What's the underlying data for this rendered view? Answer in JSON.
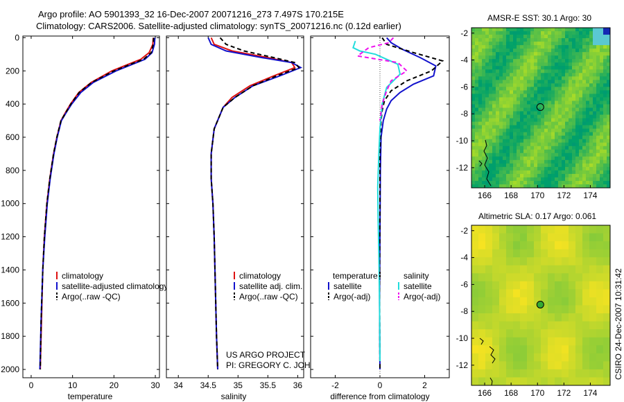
{
  "header": {
    "line1": "Argo profile: AO 5901393_32 16-Dec-2007 20071216_273 7.497S 170.215E",
    "line2": "Climatology: CARS2006. Satellite-adjusted climatology: synTS_20071216.nc (0.12d earlier)"
  },
  "side_label": "CSIRO 24-Dec-2007 10:31:42",
  "project": {
    "line1": "US ARGO PROJECT",
    "line2": "PI: GREGORY C. JOHNSON"
  },
  "colors": {
    "climatology": "#dd1111",
    "satellite": "#1111cc",
    "argo": "#000000",
    "salinity_satellite": "#22dddd",
    "salinity_argo": "#ee11ee"
  },
  "chart_data": [
    {
      "type": "line",
      "name": "temperature-panel",
      "xlabel": "temperature",
      "ylabel": "",
      "xlim": [
        -2,
        31
      ],
      "ylim": [
        2050,
        -10
      ],
      "x_ticks": [
        0,
        10,
        20,
        30
      ],
      "x_tick_labels": [
        "0",
        "10",
        "20",
        "30"
      ],
      "y_ticks": [
        0,
        200,
        400,
        600,
        800,
        1000,
        1200,
        1400,
        1600,
        1800,
        2000
      ],
      "y_tick_labels": [
        "0",
        "200",
        "400",
        "600",
        "800",
        "1000",
        "1200",
        "1400",
        "1600",
        "1800",
        "2000"
      ],
      "legend": [
        "climatology",
        "satellite-adjusted climatology",
        "Argo(..raw -QC)"
      ],
      "series": [
        {
          "name": "climatology",
          "style": "solid",
          "x": [
            29.5,
            29.4,
            28.5,
            26.5,
            23.5,
            19.5,
            14.5,
            11.5,
            9.5,
            8.3,
            7.2,
            6.2,
            5.4,
            4.5,
            3.8,
            3.2,
            2.8,
            2.5,
            2.2
          ],
          "y": [
            0,
            40,
            90,
            130,
            160,
            200,
            270,
            330,
            400,
            450,
            500,
            600,
            700,
            850,
            1000,
            1200,
            1400,
            1700,
            2000
          ]
        },
        {
          "name": "satellite",
          "style": "solid",
          "x": [
            29.9,
            29.8,
            29.2,
            27.5,
            24.5,
            20.5,
            15.0,
            12.0,
            9.8,
            8.5,
            7.3,
            6.3,
            5.5,
            4.6,
            3.9,
            3.3,
            2.8,
            2.4,
            2.1
          ],
          "y": [
            0,
            40,
            90,
            130,
            160,
            200,
            270,
            330,
            400,
            450,
            500,
            600,
            700,
            850,
            1000,
            1200,
            1400,
            1700,
            2000
          ]
        },
        {
          "name": "argo",
          "style": "dashed",
          "x": [
            29.6,
            29.5,
            29.0,
            27.2,
            24.0,
            20.0,
            14.6,
            11.6,
            9.6,
            8.4,
            7.2,
            6.2,
            5.4,
            4.5,
            3.8,
            3.2,
            2.8,
            2.4,
            2.2
          ],
          "y": [
            0,
            40,
            90,
            130,
            160,
            200,
            270,
            330,
            400,
            450,
            500,
            600,
            700,
            850,
            1000,
            1200,
            1400,
            1700,
            2000
          ]
        }
      ]
    },
    {
      "type": "line",
      "name": "salinity-panel",
      "xlabel": "salinity",
      "xlim": [
        33.8,
        36.1
      ],
      "ylim": [
        2050,
        -10
      ],
      "x_ticks": [
        34,
        34.5,
        35,
        35.5,
        36
      ],
      "x_tick_labels": [
        "34",
        "34.5",
        "35",
        "35.5",
        "36"
      ],
      "legend": [
        "climatology",
        "satellite adj. clim.",
        "Argo(..raw -QC)"
      ],
      "series": [
        {
          "name": "climatology",
          "style": "solid",
          "x": [
            34.55,
            34.6,
            34.9,
            35.5,
            35.9,
            35.95,
            35.6,
            35.2,
            34.9,
            34.75,
            34.6,
            34.55,
            34.55,
            34.58,
            34.6,
            34.62,
            34.64,
            34.66
          ],
          "y": [
            0,
            40,
            80,
            120,
            150,
            180,
            230,
            290,
            360,
            420,
            550,
            700,
            850,
            1000,
            1200,
            1500,
            1800,
            2000
          ]
        },
        {
          "name": "satellite",
          "style": "solid",
          "x": [
            34.5,
            34.55,
            34.8,
            35.4,
            35.9,
            36.05,
            35.7,
            35.25,
            34.95,
            34.75,
            34.6,
            34.55,
            34.55,
            34.58,
            34.6,
            34.62,
            34.64,
            34.66
          ],
          "y": [
            0,
            40,
            80,
            120,
            150,
            180,
            230,
            290,
            360,
            420,
            550,
            700,
            850,
            1000,
            1200,
            1500,
            1800,
            2000
          ]
        },
        {
          "name": "argo",
          "style": "dashed",
          "x": [
            34.7,
            34.8,
            35.1,
            35.6,
            35.95,
            36.02,
            35.65,
            35.25,
            34.95,
            34.75,
            34.6,
            34.55,
            34.55,
            34.58,
            34.6,
            34.62,
            34.64,
            34.66
          ],
          "y": [
            0,
            40,
            80,
            120,
            150,
            180,
            230,
            290,
            360,
            420,
            550,
            700,
            850,
            1000,
            1200,
            1500,
            1800,
            2000
          ]
        }
      ]
    },
    {
      "type": "line",
      "name": "difference-panel",
      "xlabel": "difference from climatology",
      "xlim": [
        -3.1,
        3.1
      ],
      "ylim": [
        2050,
        -10
      ],
      "x_ticks": [
        -2,
        0,
        2
      ],
      "x_tick_labels": [
        "-2",
        "0",
        "2"
      ],
      "legend_headers": [
        "temperature",
        "salinity"
      ],
      "legend_left": [
        "satellite",
        "Argo(-adj)"
      ],
      "legend_right": [
        "satellite",
        "Argo(-adj)"
      ],
      "series": [
        {
          "name": "temperature-satellite",
          "style": "solid",
          "group": "temperature",
          "x": [
            0.3,
            0.5,
            1.0,
            1.8,
            2.5,
            2.4,
            1.5,
            0.9,
            0.5,
            0.3,
            0.15,
            0.05,
            0.02,
            0.0,
            -0.02,
            0.0
          ],
          "y": [
            0,
            30,
            70,
            120,
            170,
            230,
            280,
            330,
            380,
            430,
            500,
            600,
            800,
            1200,
            1600,
            2000
          ]
        },
        {
          "name": "temperature-argo",
          "style": "dashed",
          "group": "temperature",
          "x": [
            0.1,
            0.3,
            1.5,
            2.8,
            2.3,
            1.2,
            0.5,
            0.2,
            0.1,
            0.05,
            0.0,
            0.0,
            -0.02,
            0.0
          ],
          "y": [
            0,
            40,
            90,
            140,
            200,
            260,
            320,
            380,
            440,
            500,
            700,
            1000,
            1500,
            2000
          ]
        },
        {
          "name": "salinity-satellite",
          "style": "solid",
          "group": "salinity",
          "x": [
            -1.1,
            -1.2,
            -0.9,
            -0.2,
            0.8,
            0.9,
            0.3,
            0.1,
            0.0,
            -0.05,
            -0.1,
            -0.08,
            -0.05,
            -0.02,
            0.0
          ],
          "y": [
            20,
            60,
            80,
            100,
            160,
            220,
            300,
            400,
            550,
            700,
            900,
            1100,
            1300,
            1600,
            1950
          ]
        },
        {
          "name": "salinity-argo",
          "style": "dashed",
          "group": "salinity",
          "x": [
            0.6,
            0.4,
            -0.5,
            -1.0,
            0.8,
            1.2,
            0.5,
            0.3,
            0.1,
            0.0
          ],
          "y": [
            0,
            30,
            60,
            110,
            150,
            200,
            260,
            320,
            400,
            500
          ]
        }
      ]
    },
    {
      "type": "heatmap",
      "name": "sst-map",
      "title": "AMSR-E SST: 30.1 Argo: 30",
      "xlim": [
        165,
        175.5
      ],
      "ylim": [
        -13.5,
        -1.6
      ],
      "x_ticks": [
        166,
        168,
        170,
        172,
        174
      ],
      "x_tick_labels": [
        "166",
        "168",
        "170",
        "172",
        "174"
      ],
      "y_ticks": [
        -2,
        -4,
        -6,
        -8,
        -10,
        -12
      ],
      "y_tick_labels": [
        "-2",
        "-4",
        "-6",
        "-8",
        "-10",
        "-12"
      ],
      "marker": {
        "lon": 170.215,
        "lat": -7.497
      }
    },
    {
      "type": "heatmap",
      "name": "sla-map",
      "title": "Altimetric SLA: 0.17 Argo: 0.061",
      "xlim": [
        165,
        175.5
      ],
      "ylim": [
        -13.5,
        -1.6
      ],
      "x_ticks": [
        166,
        168,
        170,
        172,
        174
      ],
      "x_tick_labels": [
        "166",
        "168",
        "170",
        "172",
        "174"
      ],
      "y_ticks": [
        -2,
        -4,
        -6,
        -8,
        -10,
        -12
      ],
      "y_tick_labels": [
        "-2",
        "-4",
        "-6",
        "-8",
        "-10",
        "-12"
      ],
      "marker": {
        "lon": 170.215,
        "lat": -7.497
      }
    }
  ]
}
